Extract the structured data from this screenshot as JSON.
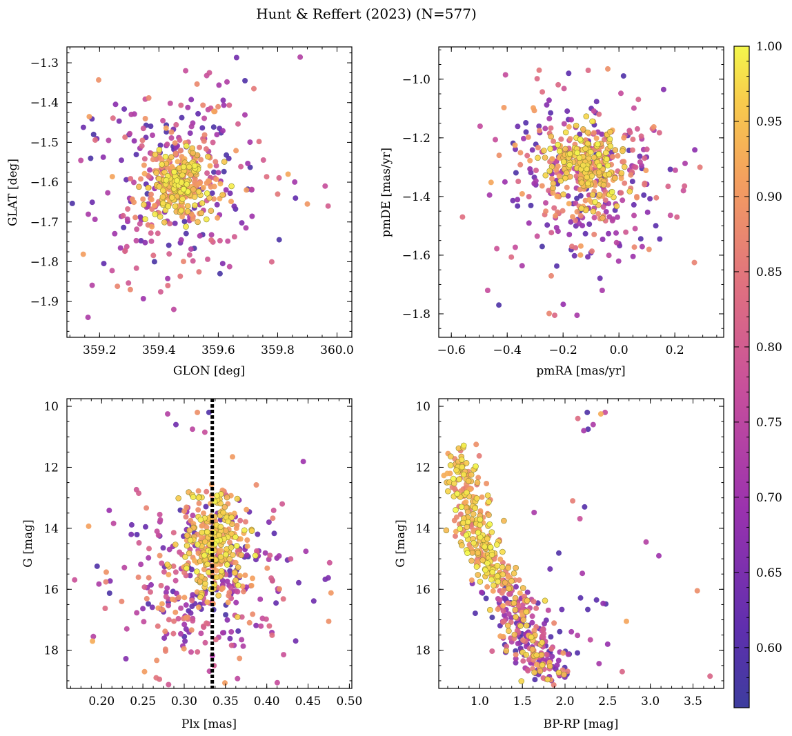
{
  "figure": {
    "title": "Hunt & Reffert (2023) (N=577)"
  },
  "colorbar": {
    "range": [
      0.56,
      1.0
    ],
    "ticks": [
      0.6,
      0.65,
      0.7,
      0.75,
      0.8,
      0.85,
      0.9,
      0.95,
      1.0
    ],
    "tick_labels": [
      "0.60",
      "0.65",
      "0.70",
      "0.75",
      "0.80",
      "0.85",
      "0.90",
      "0.95",
      "1.00"
    ],
    "colormap": "plasma"
  },
  "chart_data": [
    {
      "id": "glon-glat",
      "type": "scatter",
      "n_points": 577,
      "xlabel": "GLON [deg]",
      "ylabel": "GLAT [deg]",
      "xlim": [
        359.09,
        360.05
      ],
      "ylim": [
        -1.99,
        -1.26
      ],
      "invert_y": false,
      "xticks": [
        359.2,
        359.4,
        359.6,
        359.8,
        360.0
      ],
      "xtick_labels": [
        "359.2",
        "359.4",
        "359.6",
        "359.8",
        "360.0"
      ],
      "yticks": [
        -1.3,
        -1.4,
        -1.5,
        -1.6,
        -1.7,
        -1.8,
        -1.9
      ],
      "ytick_labels": [
        "−1.3",
        "−1.4",
        "−1.5",
        "−1.6",
        "−1.7",
        "−1.8",
        "−1.9"
      ],
      "core": {
        "center": [
          359.47,
          -1.605
        ],
        "spread": [
          0.05,
          0.042
        ]
      },
      "halo": {
        "center": [
          359.47,
          -1.59
        ],
        "spread": [
          0.14,
          0.13
        ]
      },
      "outliers": [
        [
          359.17,
          -1.54
        ],
        [
          359.18,
          -1.48
        ],
        [
          359.96,
          -1.61
        ],
        [
          359.97,
          -1.66
        ],
        [
          359.9,
          -1.655
        ],
        [
          359.86,
          -1.64
        ],
        [
          359.45,
          -1.92
        ],
        [
          359.49,
          -1.32
        ],
        [
          359.57,
          -1.325
        ],
        [
          359.72,
          -1.365
        ],
        [
          359.69,
          -1.345
        ],
        [
          359.43,
          -1.86
        ]
      ]
    },
    {
      "id": "pmra-pmde",
      "type": "scatter",
      "n_points": 577,
      "xlabel": "pmRA [mas/yr]",
      "ylabel": "pmDE [mas/yr]",
      "xlim": [
        -0.645,
        0.375
      ],
      "ylim": [
        -1.88,
        -0.89
      ],
      "invert_y": false,
      "xticks": [
        -0.6,
        -0.4,
        -0.2,
        0.0,
        0.2
      ],
      "xtick_labels": [
        "−0.6",
        "−0.4",
        "−0.2",
        "0.0",
        "0.2"
      ],
      "yticks": [
        -1.0,
        -1.2,
        -1.4,
        -1.6,
        -1.8
      ],
      "ytick_labels": [
        "−1.0",
        "−1.2",
        "−1.4",
        "−1.6",
        "−1.8"
      ],
      "core": {
        "center": [
          -0.11,
          -1.3
        ],
        "spread": [
          0.065,
          0.065
        ]
      },
      "halo": {
        "center": [
          -0.12,
          -1.33
        ],
        "spread": [
          0.16,
          0.15
        ]
      },
      "outliers": [
        [
          -0.43,
          -1.77
        ],
        [
          -0.23,
          -1.805
        ],
        [
          -0.15,
          -1.805
        ],
        [
          -0.56,
          -1.47
        ],
        [
          -0.47,
          -1.72
        ],
        [
          0.29,
          -1.3
        ],
        [
          0.27,
          -1.625
        ],
        [
          -0.18,
          -0.98
        ],
        [
          -0.11,
          -0.97
        ],
        [
          -0.04,
          -0.965
        ],
        [
          0.16,
          -1.035
        ],
        [
          -0.06,
          -1.72
        ]
      ]
    },
    {
      "id": "plx-g",
      "type": "scatter",
      "n_points": 577,
      "xlabel": "Plx [mas]",
      "ylabel": "G [mag]",
      "xlim": [
        0.158,
        0.503
      ],
      "ylim": [
        19.25,
        9.75
      ],
      "invert_y": true,
      "xticks": [
        0.2,
        0.25,
        0.3,
        0.35,
        0.4,
        0.45,
        0.5
      ],
      "xtick_labels": [
        "0.20",
        "0.25",
        "0.30",
        "0.35",
        "0.40",
        "0.45",
        "0.50"
      ],
      "yticks": [
        10,
        12,
        14,
        16,
        18
      ],
      "ytick_labels": [
        "10",
        "12",
        "14",
        "16",
        "18"
      ],
      "reference_line": {
        "axis": "x",
        "value": 0.334,
        "style": "dotted",
        "color": "#000000"
      },
      "core": {
        "center": [
          0.334,
          14.6
        ],
        "spread": [
          0.02,
          0.9
        ]
      },
      "halo": {
        "center": [
          0.33,
          15.7
        ],
        "spread": [
          0.055,
          1.35
        ]
      },
      "outliers": [
        [
          0.28,
          10.25
        ],
        [
          0.29,
          10.6
        ],
        [
          0.316,
          10.2
        ],
        [
          0.33,
          10.2
        ],
        [
          0.31,
          10.75
        ],
        [
          0.325,
          10.85
        ],
        [
          0.475,
          17.05
        ],
        [
          0.189,
          17.7
        ],
        [
          0.19,
          17.55
        ],
        [
          0.252,
          18.7
        ],
        [
          0.27,
          18.95
        ],
        [
          0.245,
          12.85
        ]
      ]
    },
    {
      "id": "bprp-g",
      "type": "scatter",
      "n_points": 577,
      "xlabel": "BP-RP [mag]",
      "ylabel": "G [mag]",
      "xlim": [
        0.52,
        3.86
      ],
      "ylim": [
        19.25,
        9.75
      ],
      "invert_y": true,
      "xticks": [
        1.0,
        1.5,
        2.0,
        2.5,
        3.0,
        3.5
      ],
      "xtick_labels": [
        "1.0",
        "1.5",
        "2.0",
        "2.5",
        "3.0",
        "3.5"
      ],
      "yticks": [
        10,
        12,
        14,
        16,
        18
      ],
      "ytick_labels": [
        "10",
        "12",
        "14",
        "16",
        "18"
      ],
      "sequence": {
        "g_range": [
          11.3,
          19.0
        ],
        "color_at_g": [
          [
            11.5,
            0.75
          ],
          [
            13.0,
            0.85
          ],
          [
            15.0,
            1.05
          ],
          [
            16.5,
            1.4
          ],
          [
            18.0,
            1.65
          ],
          [
            19.0,
            1.85
          ]
        ],
        "width": 0.14
      },
      "outliers": [
        [
          2.26,
          10.2
        ],
        [
          2.42,
          10.25
        ],
        [
          2.47,
          10.2
        ],
        [
          2.15,
          10.4
        ],
        [
          2.33,
          10.6
        ],
        [
          2.22,
          10.8
        ],
        [
          2.27,
          10.75
        ],
        [
          3.7,
          18.85
        ],
        [
          3.55,
          16.05
        ],
        [
          3.1,
          14.9
        ],
        [
          2.95,
          14.45
        ],
        [
          2.72,
          17.05
        ],
        [
          2.5,
          17.8
        ],
        [
          2.67,
          18.7
        ],
        [
          2.23,
          13.3
        ],
        [
          2.09,
          13.1
        ]
      ]
    }
  ]
}
